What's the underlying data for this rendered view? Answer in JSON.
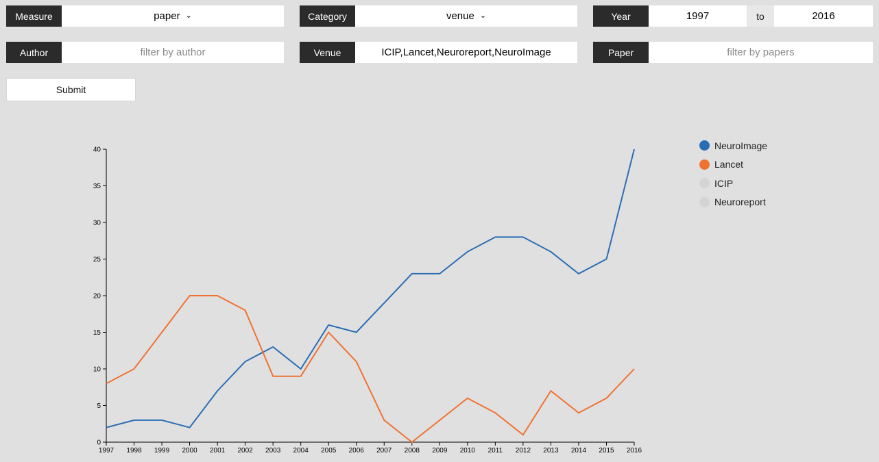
{
  "controls": {
    "measure": {
      "label": "Measure",
      "value": "paper"
    },
    "category": {
      "label": "Category",
      "value": "venue"
    },
    "year": {
      "label": "Year",
      "from": "1997",
      "to_label": "to",
      "to": "2016"
    },
    "author": {
      "label": "Author",
      "placeholder": "filter by author"
    },
    "venue": {
      "label": "Venue",
      "value": "ICIP,Lancet,Neuroreport,NeuroImage"
    },
    "paper": {
      "label": "Paper",
      "placeholder": "filter by papers"
    },
    "submit_label": "Submit"
  },
  "legend": [
    {
      "name": "NeuroImage",
      "color": "#2a6db5",
      "active": true
    },
    {
      "name": "Lancet",
      "color": "#f07231",
      "active": true
    },
    {
      "name": "ICIP",
      "color": "#d4d4d4",
      "active": false
    },
    {
      "name": "Neuroreport",
      "color": "#d4d4d4",
      "active": false
    }
  ],
  "chart_data": {
    "type": "line",
    "x": [
      "1997",
      "1998",
      "1999",
      "2000",
      "2001",
      "2002",
      "2003",
      "2004",
      "2005",
      "2006",
      "2007",
      "2008",
      "2009",
      "2010",
      "2011",
      "2012",
      "2013",
      "2014",
      "2015",
      "2016"
    ],
    "ylim": [
      0,
      40
    ],
    "yticks": [
      0,
      5,
      10,
      15,
      20,
      25,
      30,
      35,
      40
    ],
    "series": [
      {
        "name": "NeuroImage",
        "color": "#2a6db5",
        "values": [
          2,
          3,
          3,
          2,
          7,
          11,
          13,
          10,
          16,
          15,
          19,
          23,
          23,
          26,
          28,
          28,
          26,
          23,
          25,
          40
        ]
      },
      {
        "name": "Lancet",
        "color": "#f07231",
        "values": [
          8,
          10,
          15,
          20,
          20,
          18,
          9,
          9,
          15,
          11,
          3,
          0,
          3,
          6,
          4,
          1,
          7,
          4,
          6,
          10
        ]
      }
    ]
  }
}
